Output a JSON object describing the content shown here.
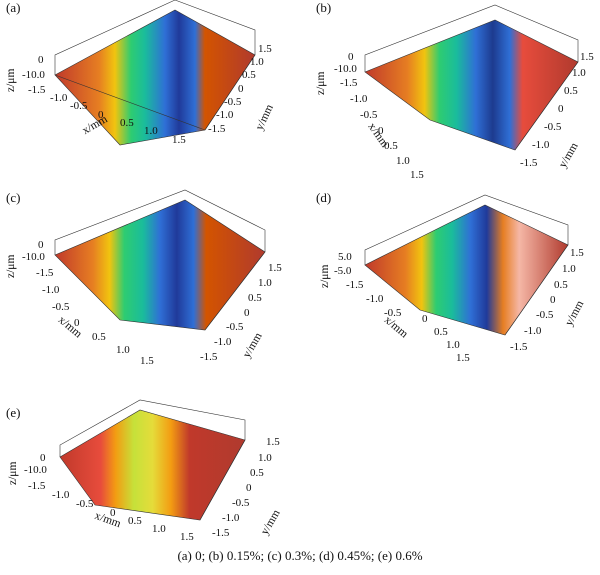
{
  "caption": "(a) 0; (b) 0.15%; (c) 0.3%; (d) 0.45%; (e) 0.6%",
  "axis_labels": {
    "x": "x/mm",
    "y": "y/mm",
    "z": "z/μm"
  },
  "panels": [
    {
      "label": "(a)",
      "z_ticks": [
        "0",
        "-10.0"
      ],
      "x_ticks": [
        "-1.5",
        "-1.0",
        "-0.5",
        "0",
        "0.5",
        "1.0",
        "1.5"
      ],
      "y_ticks": [
        "1.5",
        "1.0",
        "0.5",
        "0",
        "-0.5",
        "-1.0",
        "-1.5"
      ]
    },
    {
      "label": "(b)",
      "z_ticks": [
        "0",
        "-10.0"
      ],
      "x_ticks": [
        "-1.5",
        "-1.0",
        "-0.5",
        "0",
        "0.5",
        "1.0",
        "1.5"
      ],
      "y_ticks": [
        "1.5",
        "1.0",
        "0.5",
        "0",
        "-0.5",
        "-1.0",
        "-1.5"
      ]
    },
    {
      "label": "(c)",
      "z_ticks": [
        "0",
        "-10.0"
      ],
      "x_ticks": [
        "-1.5",
        "-1.0",
        "-0.5",
        "0",
        "0.5",
        "1.0",
        "1.5"
      ],
      "y_ticks": [
        "1.5",
        "1.0",
        "0.5",
        "0",
        "-0.5",
        "-1.0",
        "-1.5"
      ]
    },
    {
      "label": "(d)",
      "z_ticks": [
        "5.0",
        "-5.0"
      ],
      "x_ticks": [
        "-1.5",
        "-1.0",
        "-0.5",
        "0",
        "0.5",
        "1.0",
        "1.5"
      ],
      "y_ticks": [
        "1.5",
        "1.0",
        "0.5",
        "0",
        "-0.5",
        "-1.0",
        "-1.5"
      ]
    },
    {
      "label": "(e)",
      "z_ticks": [
        "0",
        "-10.0"
      ],
      "x_ticks": [
        "-1.5",
        "-1.0",
        "-0.5",
        "0",
        "0.5",
        "1.0",
        "1.5"
      ],
      "y_ticks": [
        "1.5",
        "1.0",
        "0.5",
        "0",
        "-0.5",
        "-1.0",
        "-1.5"
      ]
    }
  ]
}
